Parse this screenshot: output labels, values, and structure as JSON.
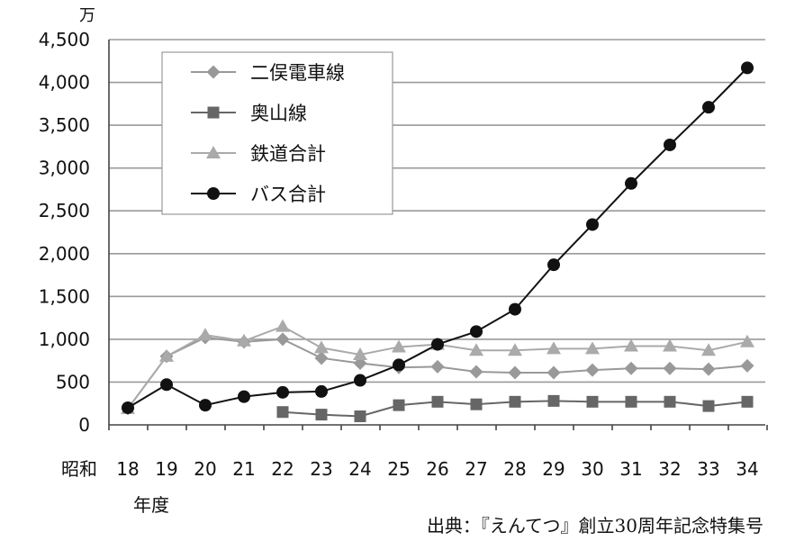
{
  "chart_data": {
    "type": "line",
    "unit_label": "万",
    "era_label": "昭和",
    "year_suffix_label": "年度",
    "x": [
      "18",
      "19",
      "20",
      "21",
      "22",
      "23",
      "24",
      "25",
      "26",
      "27",
      "28",
      "29",
      "30",
      "31",
      "32",
      "33",
      "34"
    ],
    "ylim": [
      0,
      4500
    ],
    "yticks": [
      0,
      500,
      1000,
      1500,
      2000,
      2500,
      3000,
      3500,
      4000,
      4500
    ],
    "ytick_labels": [
      "0",
      "500",
      "1,000",
      "1,500",
      "2,000",
      "2,500",
      "3,000",
      "3,500",
      "4,000",
      "4,500"
    ],
    "grid": true,
    "legend_position": "top-left",
    "source_note": "出典：『えんてつ』創立30周年記念特集号",
    "series": [
      {
        "name": "二俣電車線",
        "color": "#999999",
        "marker": "diamond",
        "values": [
          190,
          800,
          1020,
          970,
          1000,
          780,
          720,
          670,
          680,
          620,
          610,
          610,
          640,
          660,
          660,
          650,
          690
        ]
      },
      {
        "name": "奥山線",
        "color": "#666666",
        "marker": "square",
        "values": [
          null,
          null,
          null,
          null,
          150,
          120,
          100,
          230,
          270,
          240,
          270,
          280,
          270,
          270,
          270,
          220,
          270
        ]
      },
      {
        "name": "鉄道合計",
        "color": "#aaaaaa",
        "marker": "triangle",
        "values": [
          190,
          800,
          1050,
          980,
          1150,
          900,
          820,
          910,
          940,
          870,
          870,
          890,
          890,
          920,
          920,
          870,
          970
        ]
      },
      {
        "name": "バス合計",
        "color": "#111111",
        "marker": "circle",
        "values": [
          200,
          470,
          230,
          330,
          380,
          390,
          520,
          700,
          940,
          1090,
          1350,
          1870,
          2340,
          2820,
          3270,
          3710,
          4170
        ]
      }
    ]
  }
}
